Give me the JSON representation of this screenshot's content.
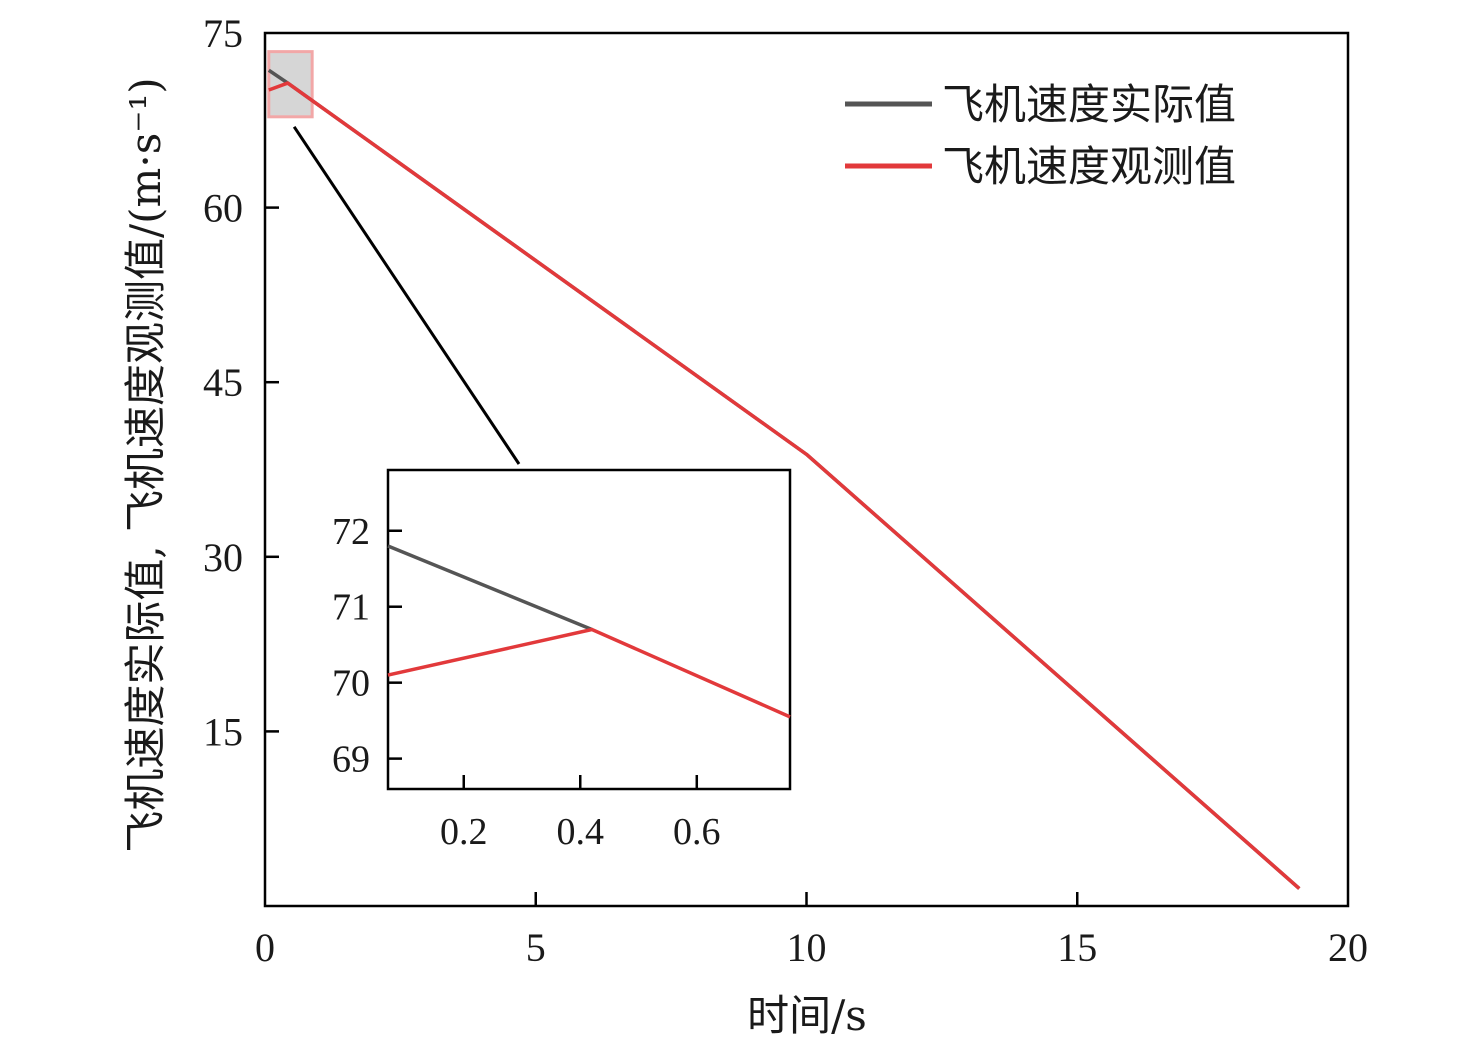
{
  "chart_data": {
    "type": "line",
    "xlabel": "时间/s",
    "ylabel": "飞机速度实际值, 飞机速度观测值/(m·s⁻¹)",
    "xlim": [
      0,
      20
    ],
    "ylim": [
      0,
      75
    ],
    "xticks": [
      "0",
      "5",
      "10",
      "15",
      "20"
    ],
    "yticks": [
      "15",
      "30",
      "45",
      "60",
      "75"
    ],
    "grid": false,
    "legend_position": "top-right",
    "series": [
      {
        "name": "飞机速度实际值",
        "color": "#555555",
        "x": [
          0.07,
          0.42,
          10,
          19.1
        ],
        "y": [
          71.8,
          70.7,
          38.8,
          1.5
        ]
      },
      {
        "name": "飞机速度观测值",
        "color": "#e2393b",
        "x": [
          0.07,
          0.42,
          10,
          19.1
        ],
        "y": [
          70.1,
          70.7,
          38.8,
          1.5
        ]
      }
    ],
    "inset": {
      "xlim": [
        0.07,
        0.76
      ],
      "ylim": [
        68.6,
        72.8
      ],
      "xticks": [
        "0.2",
        "0.4",
        "0.6"
      ],
      "yticks": [
        "69",
        "70",
        "71",
        "72"
      ],
      "series": [
        {
          "name": "飞机速度实际值",
          "x": [
            0.07,
            0.42
          ],
          "y": [
            71.8,
            70.7
          ]
        },
        {
          "name": "飞机速度观测值",
          "x": [
            0.07,
            0.42,
            0.76
          ],
          "y": [
            70.1,
            70.7,
            69.55
          ]
        }
      ]
    }
  }
}
